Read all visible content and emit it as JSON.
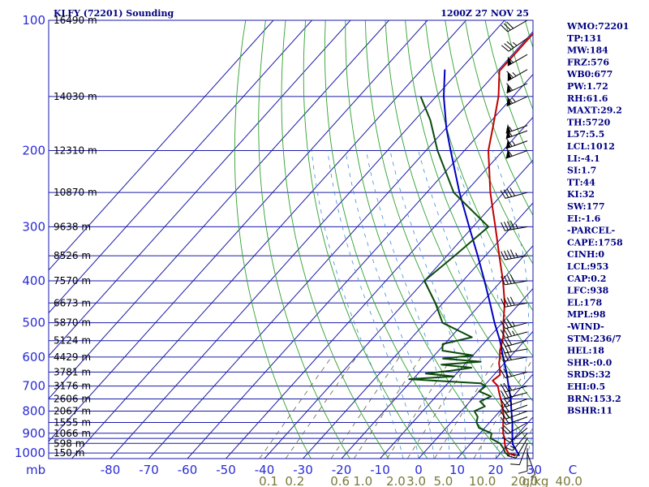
{
  "header": {
    "station": "KLFY (72201) Sounding",
    "time": "1200Z 27 NOV 25"
  },
  "indices": [
    "WMO:72201",
    "TP:131",
    "MW:184",
    "FRZ:576",
    "WB0:677",
    "PW:1.72",
    "RH:61.6",
    "MAXT:29.2",
    "TH:5720",
    "L57:5.5",
    "LCL:1012",
    "LI:-4.1",
    "SI:1.7",
    "TT:44",
    "KI:32",
    "SW:177",
    "EI:-1.6",
    "-PARCEL-",
    "CAPE:1758",
    "CINH:0",
    "LCL:953",
    "CAP:0.2",
    "LFC:938",
    "EL:178",
    "MPL:98",
    "-WIND-",
    "STM:236/7",
    "HEL:18",
    "SHR-:0.0",
    "SRDS:32",
    "EHI:0.5",
    "BRN:153.2",
    "BSHR:11"
  ],
  "colors": {
    "frame": "#1a1aa8",
    "isotherm": "#1a1aa8",
    "dry_adiabat": "#2fa02f",
    "moist_adiabat": "#3f8fd0",
    "mixing_ratio": "#606040",
    "temperature": "#c00000",
    "dewpoint": "#0b4a0b",
    "parcel": "#0000c0"
  },
  "chart_data": {
    "type": "line",
    "title": "KLFY (72201) Sounding",
    "pressure_unit": "mb",
    "pressure_levels": [
      100,
      200,
      300,
      400,
      500,
      600,
      700,
      800,
      900,
      1000
    ],
    "pressure_lines": [
      100,
      150,
      200,
      250,
      300,
      350,
      400,
      450,
      500,
      550,
      600,
      650,
      700,
      750,
      800,
      850,
      900,
      925,
      950,
      1000
    ],
    "temperature_ticks": [
      -80,
      -70,
      -60,
      -50,
      -40,
      -30,
      -20,
      -10,
      0,
      10,
      20,
      30,
      40
    ],
    "temperature_tick_labels": [
      "-80",
      "-70",
      "-60",
      "-50",
      "-40",
      "-30",
      "-20",
      "-10",
      "0",
      "10",
      "20",
      "30",
      "C"
    ],
    "mixing_ratio_lines": [
      0.1,
      0.2,
      0.6,
      1.0,
      2.0,
      3.0,
      5.0,
      10.0,
      20.0,
      40.0
    ],
    "mixing_ratio_labels": [
      "0.1",
      "0.2",
      "0.6",
      "1.0",
      "2.0",
      "3.0",
      "5.0",
      "10.0",
      "20.0",
      "40.0",
      "g/kg"
    ],
    "height_labels": [
      {
        "p": 100,
        "label": "16490 m"
      },
      {
        "p": 150,
        "label": "14030 m"
      },
      {
        "p": 200,
        "label": "12310 m"
      },
      {
        "p": 250,
        "label": "10870 m"
      },
      {
        "p": 300,
        "label": "9638 m"
      },
      {
        "p": 350,
        "label": "8526 m"
      },
      {
        "p": 400,
        "label": "7570 m"
      },
      {
        "p": 450,
        "label": "6673 m"
      },
      {
        "p": 500,
        "label": "5870 m"
      },
      {
        "p": 550,
        "label": "5124 m"
      },
      {
        "p": 600,
        "label": "4429 m"
      },
      {
        "p": 650,
        "label": "3781 m"
      },
      {
        "p": 700,
        "label": "3176 m"
      },
      {
        "p": 750,
        "label": "2606 m"
      },
      {
        "p": 800,
        "label": "2067 m"
      },
      {
        "p": 850,
        "label": "1555 m"
      },
      {
        "p": 900,
        "label": "1066 m"
      },
      {
        "p": 950,
        "label": "598 m"
      },
      {
        "p": 1000,
        "label": "150 m"
      }
    ],
    "temperature_profile": [
      {
        "p": 1015,
        "t": 24.5
      },
      {
        "p": 1000,
        "t": 22.0
      },
      {
        "p": 975,
        "t": 20.2
      },
      {
        "p": 950,
        "t": 18.8
      },
      {
        "p": 925,
        "t": 17.6
      },
      {
        "p": 900,
        "t": 16.0
      },
      {
        "p": 875,
        "t": 14.8
      },
      {
        "p": 850,
        "t": 13.5
      },
      {
        "p": 825,
        "t": 12.4
      },
      {
        "p": 800,
        "t": 10.8
      },
      {
        "p": 775,
        "t": 9.2
      },
      {
        "p": 750,
        "t": 7.4
      },
      {
        "p": 725,
        "t": 5.5
      },
      {
        "p": 700,
        "t": 3.6
      },
      {
        "p": 680,
        "t": 1.0
      },
      {
        "p": 660,
        "t": 1.6
      },
      {
        "p": 640,
        "t": 0.2
      },
      {
        "p": 620,
        "t": -1.4
      },
      {
        "p": 600,
        "t": -2.6
      },
      {
        "p": 580,
        "t": -4.1
      },
      {
        "p": 560,
        "t": -5.2
      },
      {
        "p": 540,
        "t": -6.4
      },
      {
        "p": 520,
        "t": -7.9
      },
      {
        "p": 500,
        "t": -9.7
      },
      {
        "p": 450,
        "t": -14.0
      },
      {
        "p": 400,
        "t": -19.6
      },
      {
        "p": 350,
        "t": -26.4
      },
      {
        "p": 300,
        "t": -34.2
      },
      {
        "p": 250,
        "t": -43.5
      },
      {
        "p": 200,
        "t": -53.8
      },
      {
        "p": 175,
        "t": -58.4
      },
      {
        "p": 150,
        "t": -63.8
      },
      {
        "p": 131,
        "t": -69.5
      },
      {
        "p": 100,
        "t": -69.5
      }
    ],
    "dewpoint_profile": [
      {
        "p": 1015,
        "t": 23.0
      },
      {
        "p": 1000,
        "t": 21.2
      },
      {
        "p": 975,
        "t": 19.6
      },
      {
        "p": 950,
        "t": 17.6
      },
      {
        "p": 925,
        "t": 14.0
      },
      {
        "p": 900,
        "t": 13.0
      },
      {
        "p": 875,
        "t": 8.5
      },
      {
        "p": 850,
        "t": 6.6
      },
      {
        "p": 825,
        "t": 5.6
      },
      {
        "p": 800,
        "t": 3.4
      },
      {
        "p": 780,
        "t": 5.0
      },
      {
        "p": 760,
        "t": 2.6
      },
      {
        "p": 740,
        "t": 4.3
      },
      {
        "p": 720,
        "t": 0.0
      },
      {
        "p": 700,
        "t": 0.5
      },
      {
        "p": 690,
        "t": -1.5
      },
      {
        "p": 675,
        "t": -21.0
      },
      {
        "p": 665,
        "t": -10.0
      },
      {
        "p": 655,
        "t": -18.0
      },
      {
        "p": 645,
        "t": -12.0
      },
      {
        "p": 635,
        "t": -7.5
      },
      {
        "p": 625,
        "t": -16.0
      },
      {
        "p": 615,
        "t": -6.5
      },
      {
        "p": 605,
        "t": -17.0
      },
      {
        "p": 595,
        "t": -10.0
      },
      {
        "p": 580,
        "t": -19.0
      },
      {
        "p": 560,
        "t": -20.5
      },
      {
        "p": 540,
        "t": -14.5
      },
      {
        "p": 500,
        "t": -25.5
      },
      {
        "p": 450,
        "t": -32.0
      },
      {
        "p": 400,
        "t": -40.0
      },
      {
        "p": 350,
        "t": -38.0
      },
      {
        "p": 300,
        "t": -36.0
      },
      {
        "p": 250,
        "t": -53.0
      },
      {
        "p": 200,
        "t": -67.0
      },
      {
        "p": 170,
        "t": -76.0
      },
      {
        "p": 150,
        "t": -84.0
      }
    ],
    "parcel_profile": [
      {
        "p": 1015,
        "t": 25.5
      },
      {
        "p": 953,
        "t": 21.0
      },
      {
        "p": 900,
        "t": 18.4
      },
      {
        "p": 850,
        "t": 15.9
      },
      {
        "p": 800,
        "t": 13.0
      },
      {
        "p": 750,
        "t": 10.0
      },
      {
        "p": 700,
        "t": 6.4
      },
      {
        "p": 650,
        "t": 2.6
      },
      {
        "p": 600,
        "t": -1.8
      },
      {
        "p": 550,
        "t": -6.4
      },
      {
        "p": 500,
        "t": -12.0
      },
      {
        "p": 450,
        "t": -17.8
      },
      {
        "p": 400,
        "t": -24.4
      },
      {
        "p": 350,
        "t": -32.0
      },
      {
        "p": 300,
        "t": -41.0
      },
      {
        "p": 250,
        "t": -51.5
      },
      {
        "p": 200,
        "t": -63.6
      },
      {
        "p": 178,
        "t": -69.8
      },
      {
        "p": 150,
        "t": -78.0
      },
      {
        "p": 130,
        "t": -84.0
      }
    ],
    "wind_barbs": [
      {
        "p": 1000,
        "dir": 160,
        "spd": 5
      },
      {
        "p": 975,
        "dir": 180,
        "spd": 10
      },
      {
        "p": 950,
        "dir": 200,
        "spd": 10
      },
      {
        "p": 925,
        "dir": 210,
        "spd": 15
      },
      {
        "p": 900,
        "dir": 220,
        "spd": 15
      },
      {
        "p": 875,
        "dir": 230,
        "spd": 15
      },
      {
        "p": 850,
        "dir": 240,
        "spd": 20
      },
      {
        "p": 825,
        "dir": 250,
        "spd": 20
      },
      {
        "p": 800,
        "dir": 250,
        "spd": 20
      },
      {
        "p": 775,
        "dir": 250,
        "spd": 20
      },
      {
        "p": 750,
        "dir": 250,
        "spd": 25
      },
      {
        "p": 725,
        "dir": 255,
        "spd": 25
      },
      {
        "p": 700,
        "dir": 255,
        "spd": 25
      },
      {
        "p": 650,
        "dir": 255,
        "spd": 25
      },
      {
        "p": 600,
        "dir": 260,
        "spd": 30
      },
      {
        "p": 575,
        "dir": 260,
        "spd": 30
      },
      {
        "p": 550,
        "dir": 255,
        "spd": 30
      },
      {
        "p": 525,
        "dir": 255,
        "spd": 35
      },
      {
        "p": 500,
        "dir": 255,
        "spd": 35
      },
      {
        "p": 450,
        "dir": 260,
        "spd": 40
      },
      {
        "p": 400,
        "dir": 260,
        "spd": 40
      },
      {
        "p": 350,
        "dir": 260,
        "spd": 45
      },
      {
        "p": 300,
        "dir": 260,
        "spd": 45
      },
      {
        "p": 250,
        "dir": 255,
        "spd": 40
      },
      {
        "p": 200,
        "dir": 250,
        "spd": 60
      },
      {
        "p": 190,
        "dir": 250,
        "spd": 65
      },
      {
        "p": 180,
        "dir": 250,
        "spd": 60
      },
      {
        "p": 175,
        "dir": 250,
        "spd": 55
      },
      {
        "p": 150,
        "dir": 245,
        "spd": 65
      },
      {
        "p": 140,
        "dir": 245,
        "spd": 60
      },
      {
        "p": 130,
        "dir": 240,
        "spd": 65
      },
      {
        "p": 120,
        "dir": 240,
        "spd": 55
      },
      {
        "p": 110,
        "dir": 235,
        "spd": 35
      },
      {
        "p": 100,
        "dir": 240,
        "spd": 30
      }
    ]
  }
}
